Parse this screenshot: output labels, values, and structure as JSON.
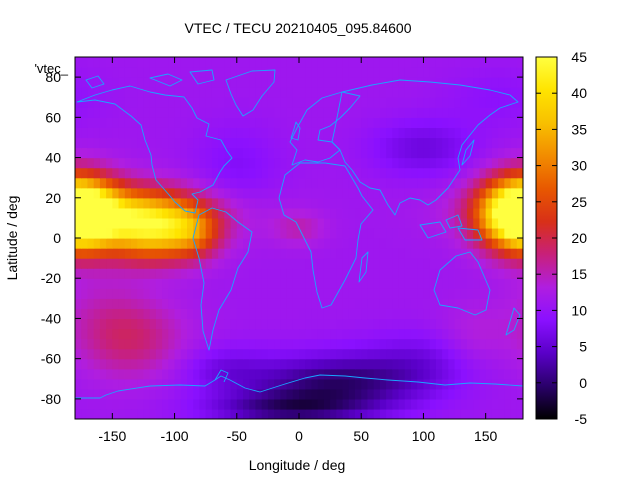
{
  "chart_data": {
    "type": "heatmap",
    "title": "VTEC / TECU 20210405_095.84600",
    "xlabel": "Longitude / deg",
    "ylabel": "Latitude / deg",
    "xlim": [
      -180,
      180
    ],
    "ylim": [
      -90,
      90
    ],
    "xticks": [
      -150,
      -100,
      -50,
      0,
      50,
      100,
      150
    ],
    "yticks": [
      -80,
      -60,
      -40,
      -20,
      0,
      20,
      40,
      60,
      80
    ],
    "colorbar": {
      "range": [
        -5,
        45
      ],
      "ticks": [
        -5,
        0,
        5,
        10,
        15,
        20,
        25,
        30,
        35,
        40,
        45
      ],
      "palette": [
        "#000000",
        "#2a006a",
        "#5a00c8",
        "#8a10ff",
        "#b01ee0",
        "#c8207a",
        "#d83018",
        "#e85800",
        "#f28c00",
        "#f8c000",
        "#ffe400",
        "#ffff40"
      ]
    },
    "legend": "'vtec_",
    "background_vtec": 11,
    "overlay": "coastlines",
    "features": [
      {
        "lon": -175,
        "lat": 12,
        "vtec": 41,
        "slon": 22,
        "slat": 12
      },
      {
        "lon": -120,
        "lat": 5,
        "vtec": 35,
        "slon": 24,
        "slat": 11
      },
      {
        "lon": -85,
        "lat": 3,
        "vtec": 23,
        "slon": 16,
        "slat": 9
      },
      {
        "lon": -135,
        "lat": 12,
        "vtec": 22,
        "slon": 55,
        "slat": 10
      },
      {
        "lon": 175,
        "lat": 13,
        "vtec": 32,
        "slon": 22,
        "slat": 12
      },
      {
        "lon": -135,
        "lat": -50,
        "vtec": 18,
        "slon": 30,
        "slat": 14
      },
      {
        "lon": -160,
        "lat": -35,
        "vtec": 13,
        "slon": 25,
        "slat": 15
      },
      {
        "lon": 0,
        "lat": 5,
        "vtec": 15,
        "slon": 15,
        "slat": 6
      },
      {
        "lon": 30,
        "lat": -72,
        "vtec": 0,
        "slon": 50,
        "slat": 10
      },
      {
        "lon": -10,
        "lat": -85,
        "vtec": 2,
        "slon": 45,
        "slat": 6
      },
      {
        "lon": -50,
        "lat": 35,
        "vtec": 8,
        "slon": 25,
        "slat": 15
      },
      {
        "lon": 100,
        "lat": 45,
        "vtec": 6,
        "slon": 30,
        "slat": 10
      },
      {
        "lon": 100,
        "lat": -60,
        "vtec": 7,
        "slon": 35,
        "slat": 10
      },
      {
        "lon": -60,
        "lat": -65,
        "vtec": 7,
        "slon": 25,
        "slat": 8
      },
      {
        "lon": 140,
        "lat": -50,
        "vtec": 14,
        "slon": 20,
        "slat": 12
      },
      {
        "lon": 160,
        "lat": 70,
        "vtec": 9,
        "slon": 30,
        "slat": 10
      }
    ]
  }
}
